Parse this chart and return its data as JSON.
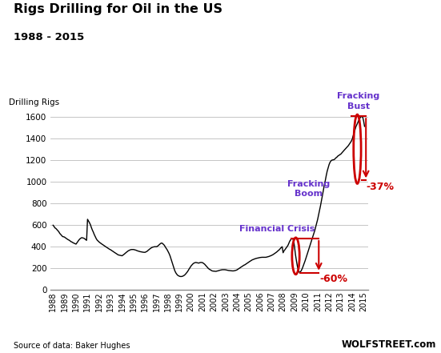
{
  "title": "Rigs Drilling for Oil in the US",
  "subtitle": "1988 - 2015",
  "ylabel": "Drilling Rigs",
  "source": "Source of data: Baker Hughes",
  "watermark": "WOLFSTREET.com",
  "ylim": [
    0,
    1700
  ],
  "yticks": [
    0,
    200,
    400,
    600,
    800,
    1000,
    1200,
    1400,
    1600
  ],
  "line_color": "#000000",
  "background_color": "#ffffff",
  "grid_color": "#bbbbbb",
  "ann_color_blue": "#6633cc",
  "ann_color_red": "#cc0000",
  "xtick_years": [
    "1988",
    "1989",
    "1990",
    "1991",
    "1992",
    "1993",
    "1994",
    "1995",
    "1996",
    "1997",
    "1998",
    "1999",
    "2000",
    "2001",
    "2002",
    "2003",
    "2004",
    "2005",
    "2006",
    "2007",
    "2008",
    "2009",
    "2010",
    "2011",
    "2012",
    "2013",
    "2014",
    "2015"
  ],
  "data": {
    "dates": [
      1988.0,
      1988.08,
      1988.17,
      1988.25,
      1988.33,
      1988.42,
      1988.5,
      1988.58,
      1988.67,
      1988.75,
      1988.83,
      1988.92,
      1989.0,
      1989.08,
      1989.17,
      1989.25,
      1989.33,
      1989.42,
      1989.5,
      1989.58,
      1989.67,
      1989.75,
      1989.83,
      1989.92,
      1990.0,
      1990.08,
      1990.17,
      1990.25,
      1990.33,
      1990.42,
      1990.5,
      1990.58,
      1990.67,
      1990.75,
      1990.83,
      1990.92,
      1991.0,
      1991.08,
      1991.17,
      1991.25,
      1991.33,
      1991.42,
      1991.5,
      1991.58,
      1991.67,
      1991.75,
      1991.83,
      1991.92,
      1992.0,
      1992.08,
      1992.17,
      1992.25,
      1992.33,
      1992.42,
      1992.5,
      1992.58,
      1992.67,
      1992.75,
      1992.83,
      1992.92,
      1993.0,
      1993.08,
      1993.17,
      1993.25,
      1993.33,
      1993.42,
      1993.5,
      1993.58,
      1993.67,
      1993.75,
      1993.83,
      1993.92,
      1994.0,
      1994.08,
      1994.17,
      1994.25,
      1994.33,
      1994.42,
      1994.5,
      1994.58,
      1994.67,
      1994.75,
      1994.83,
      1994.92,
      1995.0,
      1995.08,
      1995.17,
      1995.25,
      1995.33,
      1995.42,
      1995.5,
      1995.58,
      1995.67,
      1995.75,
      1995.83,
      1995.92,
      1996.0,
      1996.08,
      1996.17,
      1996.25,
      1996.33,
      1996.42,
      1996.5,
      1996.58,
      1996.67,
      1996.75,
      1996.83,
      1996.92,
      1997.0,
      1997.08,
      1997.17,
      1997.25,
      1997.33,
      1997.42,
      1997.5,
      1997.58,
      1997.67,
      1997.75,
      1997.83,
      1997.92,
      1998.0,
      1998.08,
      1998.17,
      1998.25,
      1998.33,
      1998.42,
      1998.5,
      1998.58,
      1998.67,
      1998.75,
      1998.83,
      1998.92,
      1999.0,
      1999.08,
      1999.17,
      1999.25,
      1999.33,
      1999.42,
      1999.5,
      1999.58,
      1999.67,
      1999.75,
      1999.83,
      1999.92,
      2000.0,
      2000.08,
      2000.17,
      2000.25,
      2000.33,
      2000.42,
      2000.5,
      2000.58,
      2000.67,
      2000.75,
      2000.83,
      2000.92,
      2001.0,
      2001.08,
      2001.17,
      2001.25,
      2001.33,
      2001.42,
      2001.5,
      2001.58,
      2001.67,
      2001.75,
      2001.83,
      2001.92,
      2002.0,
      2002.08,
      2002.17,
      2002.25,
      2002.33,
      2002.42,
      2002.5,
      2002.58,
      2002.67,
      2002.75,
      2002.83,
      2002.92,
      2003.0,
      2003.08,
      2003.17,
      2003.25,
      2003.33,
      2003.42,
      2003.5,
      2003.58,
      2003.67,
      2003.75,
      2003.83,
      2003.92,
      2004.0,
      2004.08,
      2004.17,
      2004.25,
      2004.33,
      2004.42,
      2004.5,
      2004.58,
      2004.67,
      2004.75,
      2004.83,
      2004.92,
      2005.0,
      2005.08,
      2005.17,
      2005.25,
      2005.33,
      2005.42,
      2005.5,
      2005.58,
      2005.67,
      2005.75,
      2005.83,
      2005.92,
      2006.0,
      2006.08,
      2006.17,
      2006.25,
      2006.33,
      2006.42,
      2006.5,
      2006.58,
      2006.67,
      2006.75,
      2006.83,
      2006.92,
      2007.0,
      2007.08,
      2007.17,
      2007.25,
      2007.33,
      2007.42,
      2007.5,
      2007.58,
      2007.67,
      2007.75,
      2007.83,
      2007.92,
      2008.0,
      2008.08,
      2008.17,
      2008.25,
      2008.33,
      2008.42,
      2008.5,
      2008.58,
      2008.67,
      2008.75,
      2008.83,
      2008.92,
      2009.0,
      2009.08,
      2009.17,
      2009.25,
      2009.33,
      2009.42,
      2009.5,
      2009.58,
      2009.67,
      2009.75,
      2009.83,
      2009.92,
      2010.0,
      2010.08,
      2010.17,
      2010.25,
      2010.33,
      2010.42,
      2010.5,
      2010.58,
      2010.67,
      2010.75,
      2010.83,
      2010.92,
      2011.0,
      2011.08,
      2011.17,
      2011.25,
      2011.33,
      2011.42,
      2011.5,
      2011.58,
      2011.67,
      2011.75,
      2011.83,
      2011.92,
      2012.0,
      2012.08,
      2012.17,
      2012.25,
      2012.33,
      2012.42,
      2012.5,
      2012.58,
      2012.67,
      2012.75,
      2012.83,
      2012.92,
      2013.0,
      2013.08,
      2013.17,
      2013.25,
      2013.33,
      2013.42,
      2013.5,
      2013.58,
      2013.67,
      2013.75,
      2013.83,
      2013.92,
      2014.0,
      2014.08,
      2014.17,
      2014.25,
      2014.33,
      2014.42,
      2014.5,
      2014.58,
      2014.67,
      2014.75,
      2014.83,
      2014.92,
      2015.0,
      2015.08
    ],
    "values": [
      595,
      585,
      570,
      565,
      555,
      545,
      535,
      520,
      510,
      500,
      490,
      488,
      485,
      478,
      472,
      465,
      460,
      455,
      448,
      442,
      438,
      432,
      428,
      424,
      420,
      432,
      445,
      458,
      468,
      475,
      480,
      478,
      475,
      470,
      462,
      455,
      650,
      635,
      618,
      600,
      575,
      550,
      532,
      510,
      490,
      472,
      458,
      448,
      440,
      433,
      426,
      420,
      413,
      408,
      402,
      396,
      390,
      384,
      378,
      372,
      368,
      362,
      356,
      350,
      344,
      338,
      332,
      326,
      320,
      318,
      316,
      314,
      312,
      318,
      325,
      332,
      340,
      348,
      355,
      360,
      365,
      368,
      370,
      370,
      370,
      368,
      365,
      362,
      358,
      355,
      352,
      350,
      348,
      346,
      345,
      344,
      344,
      348,
      353,
      360,
      368,
      376,
      382,
      388,
      392,
      394,
      396,
      396,
      396,
      400,
      408,
      416,
      424,
      430,
      428,
      420,
      410,
      396,
      382,
      368,
      352,
      335,
      312,
      285,
      258,
      228,
      200,
      175,
      155,
      142,
      132,
      126,
      122,
      120,
      120,
      122,
      126,
      132,
      140,
      150,
      162,
      175,
      190,
      204,
      218,
      228,
      238,
      244,
      248,
      250,
      248,
      246,
      244,
      248,
      250,
      250,
      248,
      242,
      235,
      225,
      215,
      205,
      195,
      188,
      182,
      176,
      172,
      170,
      170,
      168,
      168,
      170,
      172,
      175,
      178,
      180,
      182,
      183,
      183,
      183,
      182,
      180,
      178,
      176,
      175,
      174,
      173,
      172,
      172,
      173,
      175,
      178,
      182,
      188,
      194,
      200,
      206,
      212,
      218,
      224,
      228,
      234,
      240,
      246,
      252,
      258,
      264,
      270,
      275,
      278,
      282,
      285,
      288,
      290,
      292,
      294,
      296,
      297,
      298,
      298,
      298,
      298,
      298,
      300,
      302,
      305,
      308,
      312,
      316,
      320,
      326,
      332,
      338,
      345,
      352,
      360,
      368,
      378,
      388,
      396,
      340,
      358,
      370,
      382,
      394,
      408,
      428,
      448,
      462,
      472,
      468,
      455,
      388,
      320,
      258,
      210,
      175,
      158,
      162,
      175,
      195,
      218,
      242,
      268,
      295,
      322,
      350,
      378,
      408,
      438,
      462,
      488,
      515,
      545,
      578,
      612,
      648,
      688,
      730,
      775,
      820,
      868,
      918,
      968,
      1010,
      1055,
      1095,
      1130,
      1158,
      1178,
      1192,
      1198,
      1200,
      1202,
      1208,
      1218,
      1225,
      1235,
      1240,
      1248,
      1252,
      1262,
      1272,
      1282,
      1292,
      1302,
      1312,
      1322,
      1332,
      1345,
      1358,
      1372,
      1390,
      1420,
      1450,
      1480,
      1508,
      1528,
      1548,
      1568,
      1585,
      1598,
      1604,
      1595,
      1560,
      1510
    ]
  }
}
